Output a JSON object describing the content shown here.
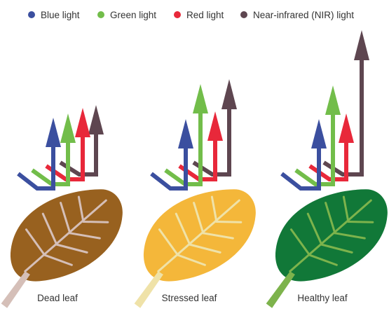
{
  "legend": [
    {
      "label": "Blue light",
      "color": "#3b4f9f"
    },
    {
      "label": "Green light",
      "color": "#72bd4a"
    },
    {
      "label": "Red light",
      "color": "#e8283a"
    },
    {
      "label": "Near-infrared (NIR) light",
      "color": "#5e4650"
    }
  ],
  "leaves": [
    {
      "label": "Dead leaf",
      "leaf_color": "#98611f",
      "vein_color": "#d5bfb8",
      "reflectance": {
        "blue": "low",
        "green": "low",
        "red": "low",
        "nir": "low"
      }
    },
    {
      "label": "Stressed leaf",
      "leaf_color": "#f4b73a",
      "vein_color": "#efe2a8",
      "reflectance": {
        "blue": "low",
        "green": "medium",
        "red": "low",
        "nir": "medium"
      }
    },
    {
      "label": "Healthy leaf",
      "leaf_color": "#117838",
      "vein_color": "#7db34c",
      "reflectance": {
        "blue": "low",
        "green": "medium",
        "red": "low",
        "nir": "high"
      }
    }
  ]
}
